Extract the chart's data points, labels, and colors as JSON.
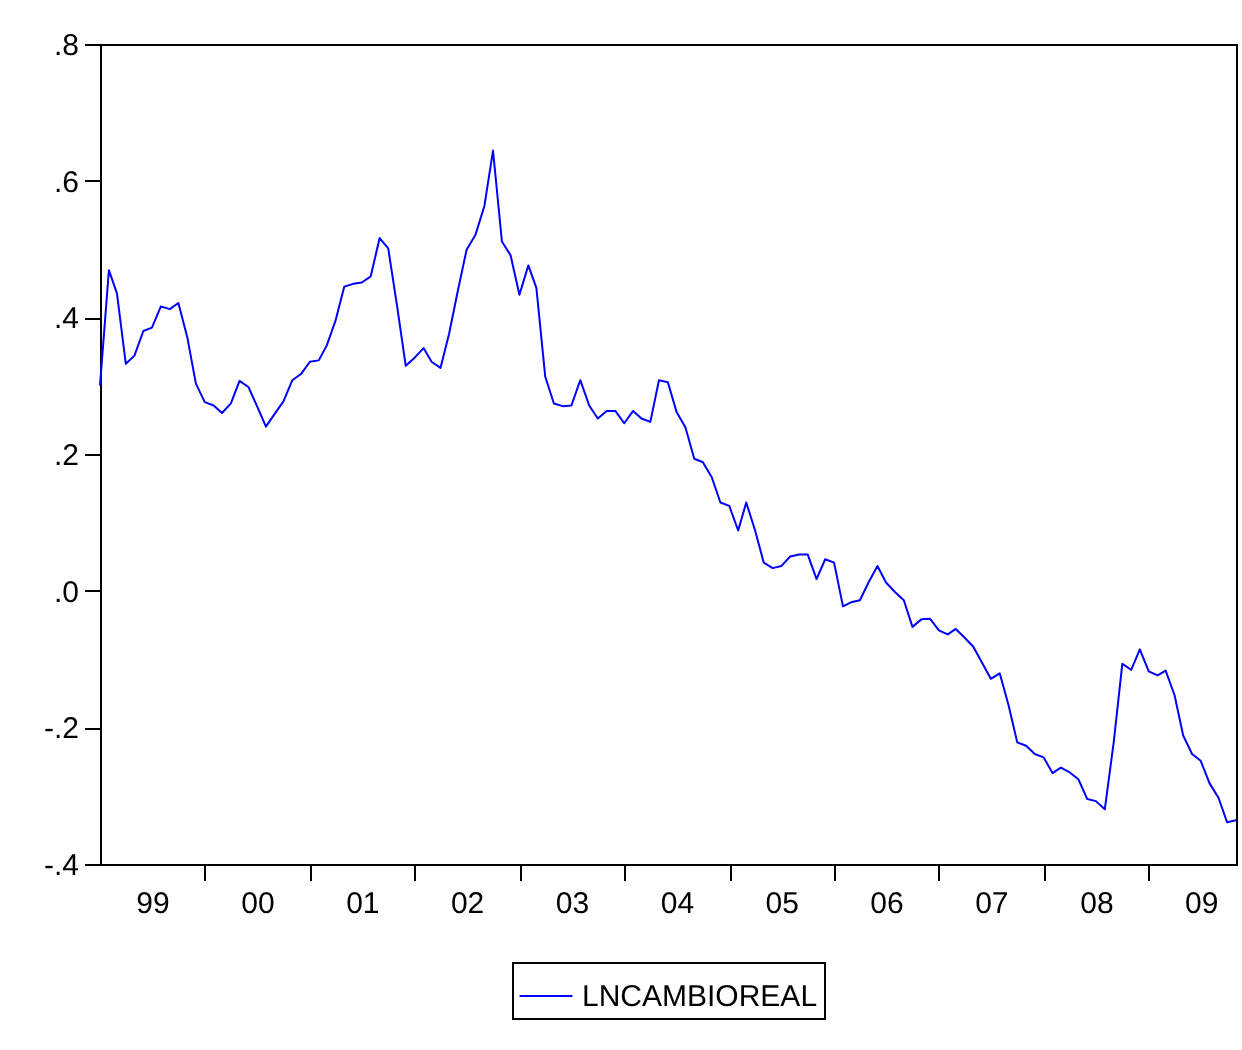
{
  "chart_data": {
    "type": "line",
    "x": [
      "1999-01",
      "1999-02",
      "1999-03",
      "1999-04",
      "1999-05",
      "1999-06",
      "1999-07",
      "1999-08",
      "1999-09",
      "1999-10",
      "1999-11",
      "1999-12",
      "2000-01",
      "2000-02",
      "2000-03",
      "2000-04",
      "2000-05",
      "2000-06",
      "2000-07",
      "2000-08",
      "2000-09",
      "2000-10",
      "2000-11",
      "2000-12",
      "2001-01",
      "2001-02",
      "2001-03",
      "2001-04",
      "2001-05",
      "2001-06",
      "2001-07",
      "2001-08",
      "2001-09",
      "2001-10",
      "2001-11",
      "2001-12",
      "2002-01",
      "2002-02",
      "2002-03",
      "2002-04",
      "2002-05",
      "2002-06",
      "2002-07",
      "2002-08",
      "2002-09",
      "2002-10",
      "2002-11",
      "2002-12",
      "2003-01",
      "2003-02",
      "2003-03",
      "2003-04",
      "2003-05",
      "2003-06",
      "2003-07",
      "2003-08",
      "2003-09",
      "2003-10",
      "2003-11",
      "2003-12",
      "2004-01",
      "2004-02",
      "2004-03",
      "2004-04",
      "2004-05",
      "2004-06",
      "2004-07",
      "2004-08",
      "2004-09",
      "2004-10",
      "2004-11",
      "2004-12",
      "2005-01",
      "2005-02",
      "2005-03",
      "2005-04",
      "2005-05",
      "2005-06",
      "2005-07",
      "2005-08",
      "2005-09",
      "2005-10",
      "2005-11",
      "2005-12",
      "2006-01",
      "2006-02",
      "2006-03",
      "2006-04",
      "2006-05",
      "2006-06",
      "2006-07",
      "2006-08",
      "2006-09",
      "2006-10",
      "2006-11",
      "2006-12",
      "2007-01",
      "2007-02",
      "2007-03",
      "2007-04",
      "2007-05",
      "2007-06",
      "2007-07",
      "2007-08",
      "2007-09",
      "2007-10",
      "2007-11",
      "2007-12",
      "2008-01",
      "2008-02",
      "2008-03",
      "2008-04",
      "2008-05",
      "2008-06",
      "2008-07",
      "2008-08",
      "2008-09",
      "2008-10",
      "2008-11",
      "2008-12",
      "2009-01",
      "2009-02",
      "2009-03",
      "2009-04",
      "2009-05",
      "2009-06",
      "2009-07",
      "2009-08",
      "2009-09",
      "2009-10",
      "2009-11"
    ],
    "series": [
      {
        "name": "LNCAMBIOREAL",
        "color": "#0000ff",
        "values": [
          0.3,
          0.469,
          0.435,
          0.332,
          0.344,
          0.38,
          0.385,
          0.416,
          0.412,
          0.421,
          0.371,
          0.303,
          0.276,
          0.271,
          0.26,
          0.274,
          0.307,
          0.298,
          0.27,
          0.24,
          0.259,
          0.277,
          0.308,
          0.317,
          0.335,
          0.337,
          0.359,
          0.396,
          0.445,
          0.449,
          0.451,
          0.46,
          0.516,
          0.501,
          0.416,
          0.329,
          0.341,
          0.355,
          0.335,
          0.326,
          0.376,
          0.44,
          0.499,
          0.521,
          0.563,
          0.644,
          0.511,
          0.491,
          0.433,
          0.476,
          0.443,
          0.313,
          0.274,
          0.27,
          0.271,
          0.308,
          0.271,
          0.252,
          0.263,
          0.263,
          0.245,
          0.263,
          0.252,
          0.247,
          0.308,
          0.305,
          0.262,
          0.239,
          0.193,
          0.188,
          0.166,
          0.129,
          0.124,
          0.088,
          0.129,
          0.088,
          0.041,
          0.033,
          0.036,
          0.05,
          0.053,
          0.053,
          0.017,
          0.046,
          0.041,
          -0.023,
          -0.017,
          -0.014,
          0.012,
          0.036,
          0.012,
          -0.002,
          -0.014,
          -0.053,
          -0.042,
          -0.041,
          -0.058,
          -0.064,
          -0.056,
          -0.069,
          -0.082,
          -0.106,
          -0.129,
          -0.121,
          -0.168,
          -0.222,
          -0.227,
          -0.239,
          -0.244,
          -0.267,
          -0.259,
          -0.266,
          -0.276,
          -0.305,
          -0.308,
          -0.32,
          -0.222,
          -0.107,
          -0.116,
          -0.086,
          -0.118,
          -0.124,
          -0.117,
          -0.153,
          -0.212,
          -0.239,
          -0.249,
          -0.282,
          -0.303,
          -0.339,
          -0.336
        ]
      }
    ],
    "xlim": [
      "1999-01",
      "2009-11"
    ],
    "xticks": [
      {
        "value": "1999-07",
        "label": "99"
      },
      {
        "value": "2000-01",
        "label": null
      },
      {
        "value": "2000-07",
        "label": "00"
      },
      {
        "value": "2001-01",
        "label": null
      },
      {
        "value": "2001-07",
        "label": "01"
      },
      {
        "value": "2002-01",
        "label": null
      },
      {
        "value": "2002-07",
        "label": "02"
      },
      {
        "value": "2003-01",
        "label": null
      },
      {
        "value": "2003-07",
        "label": "03"
      },
      {
        "value": "2004-01",
        "label": null
      },
      {
        "value": "2004-07",
        "label": "04"
      },
      {
        "value": "2005-01",
        "label": null
      },
      {
        "value": "2005-07",
        "label": "05"
      },
      {
        "value": "2006-01",
        "label": null
      },
      {
        "value": "2006-07",
        "label": "06"
      },
      {
        "value": "2007-01",
        "label": null
      },
      {
        "value": "2007-07",
        "label": "07"
      },
      {
        "value": "2008-01",
        "label": null
      },
      {
        "value": "2008-07",
        "label": "08"
      },
      {
        "value": "2009-01",
        "label": null
      },
      {
        "value": "2009-07",
        "label": "09"
      }
    ],
    "ylim": [
      -0.4,
      0.8
    ],
    "yticks": [
      {
        "value": -0.4,
        "label": "-.4"
      },
      {
        "value": -0.2,
        "label": "-.2"
      },
      {
        "value": 0,
        "label": ".0"
      },
      {
        "value": 0.2,
        "label": ".2"
      },
      {
        "value": 0.4,
        "label": ".4"
      },
      {
        "value": 0.6,
        "label": ".6"
      },
      {
        "value": 0.8,
        "label": ".8"
      }
    ],
    "legend": "bottom",
    "grid": false,
    "line_style": "solid",
    "marker": "none"
  }
}
